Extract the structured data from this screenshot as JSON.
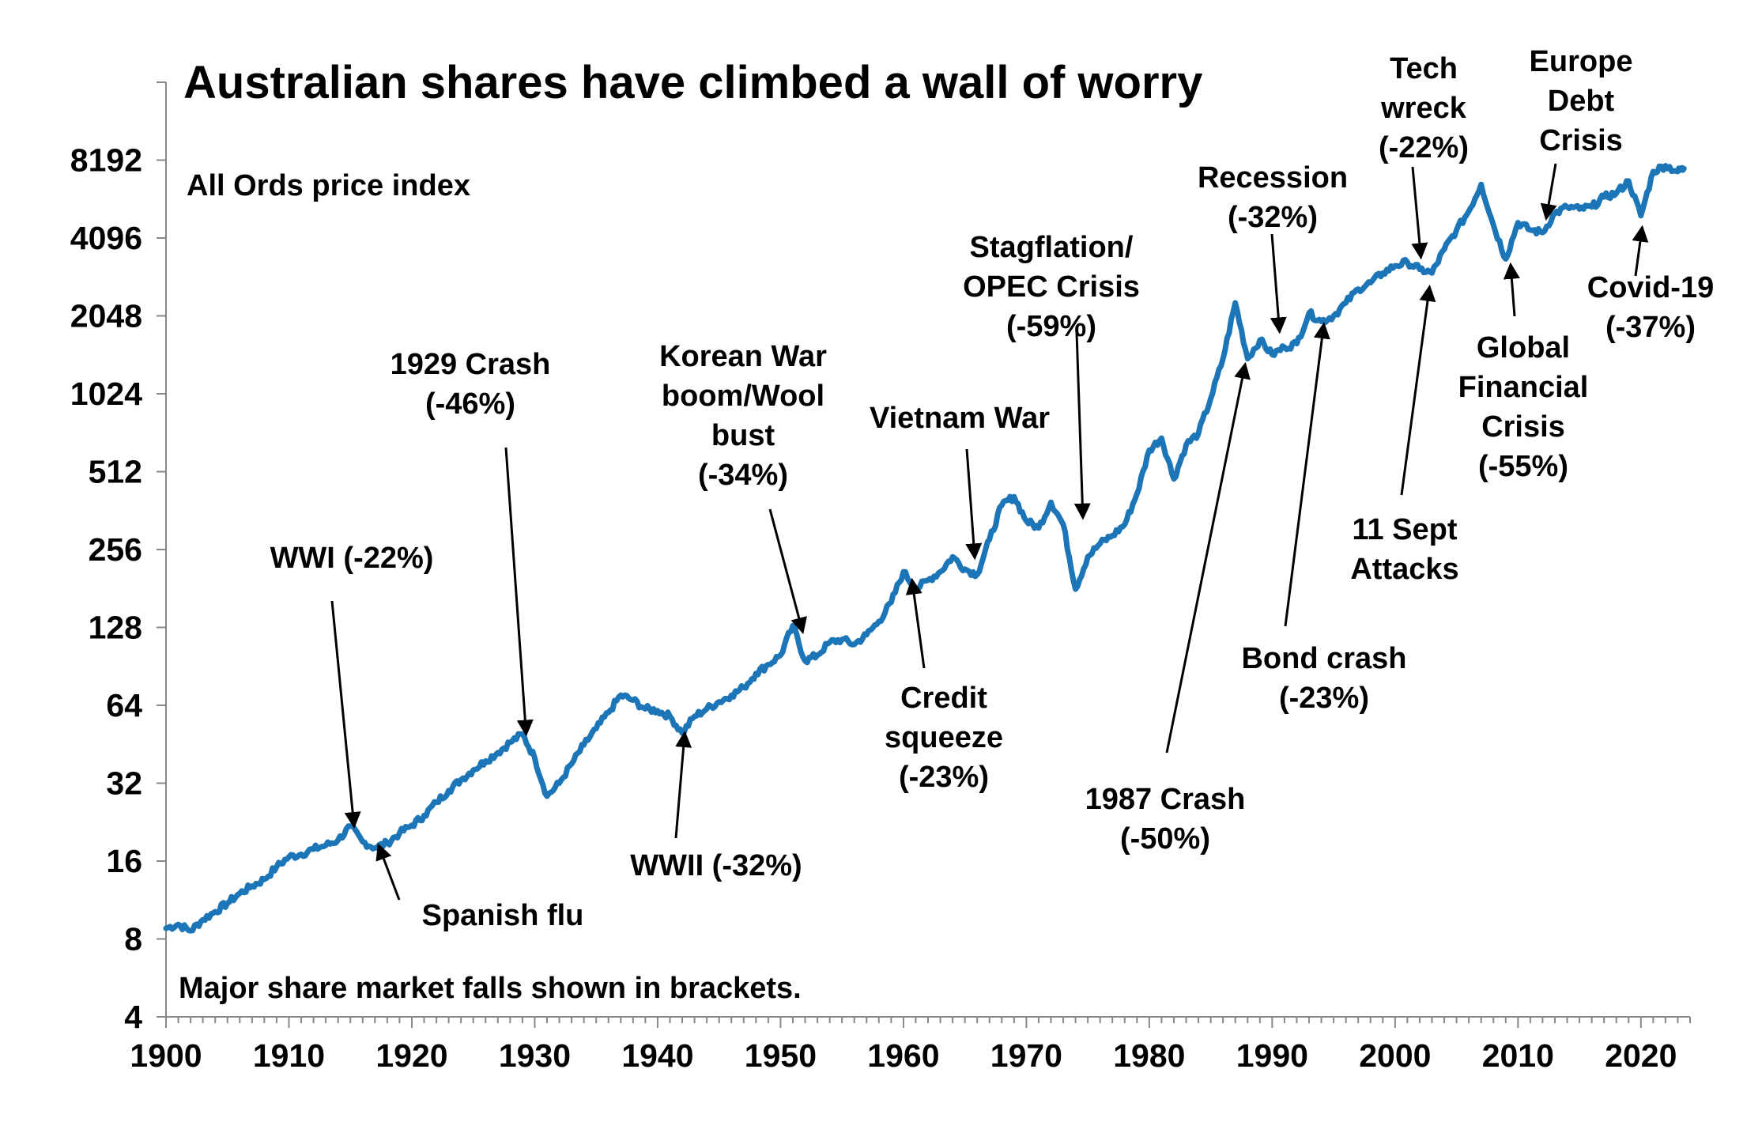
{
  "chart_data": {
    "type": "line",
    "title": "Australian shares have climbed a wall of worry",
    "subtitle": "All Ords price index",
    "footnote": "Major share market falls shown in brackets.",
    "series": [
      {
        "name": "All Ords price index",
        "color": "#1b75b6"
      }
    ],
    "y_scale": "log2",
    "ylim": [
      4,
      16384
    ],
    "xlim": [
      1900,
      2024
    ],
    "x_ticks": [
      "1900",
      "1910",
      "1920",
      "1930",
      "1940",
      "1950",
      "1960",
      "1970",
      "1980",
      "1990",
      "2000",
      "2010",
      "2020"
    ],
    "y_ticks": [
      "4",
      "8",
      "16",
      "32",
      "64",
      "128",
      "256",
      "512",
      "1024",
      "2048",
      "4096",
      "8192"
    ],
    "points": [
      [
        1900,
        8.8
      ],
      [
        1901,
        9.1
      ],
      [
        1902,
        8.6
      ],
      [
        1903,
        9.5
      ],
      [
        1904,
        10.2
      ],
      [
        1905,
        11.0
      ],
      [
        1906,
        12.0
      ],
      [
        1907,
        12.8
      ],
      [
        1908,
        13.6
      ],
      [
        1909,
        15.2
      ],
      [
        1910,
        16.6
      ],
      [
        1911,
        17.0
      ],
      [
        1912,
        17.8
      ],
      [
        1913,
        18.4
      ],
      [
        1914,
        19.3
      ],
      [
        1915,
        21.8
      ],
      [
        1916,
        19.0
      ],
      [
        1917,
        18.0
      ],
      [
        1918,
        18.8
      ],
      [
        1919,
        20.5
      ],
      [
        1920,
        22.0
      ],
      [
        1921,
        24.0
      ],
      [
        1922,
        27.0
      ],
      [
        1923,
        30.0
      ],
      [
        1924,
        33.0
      ],
      [
        1925,
        36.0
      ],
      [
        1926,
        39.0
      ],
      [
        1927,
        42.0
      ],
      [
        1928,
        46.0
      ],
      [
        1929,
        49.5
      ],
      [
        1930,
        40.0
      ],
      [
        1931,
        28.5
      ],
      [
        1932,
        32.0
      ],
      [
        1933,
        38.0
      ],
      [
        1934,
        45.0
      ],
      [
        1935,
        52.0
      ],
      [
        1936,
        60.0
      ],
      [
        1937,
        70.0
      ],
      [
        1938,
        67.0
      ],
      [
        1939,
        62.0
      ],
      [
        1940,
        61.0
      ],
      [
        1941,
        58.0
      ],
      [
        1942,
        50.0
      ],
      [
        1943,
        58.0
      ],
      [
        1944,
        62.0
      ],
      [
        1945,
        66.0
      ],
      [
        1946,
        70.0
      ],
      [
        1947,
        75.0
      ],
      [
        1948,
        85.0
      ],
      [
        1949,
        92.0
      ],
      [
        1950,
        100.0
      ],
      [
        1951,
        130.0
      ],
      [
        1952,
        95.0
      ],
      [
        1953,
        100.0
      ],
      [
        1954,
        112.0
      ],
      [
        1955,
        115.0
      ],
      [
        1956,
        110.0
      ],
      [
        1957,
        120.0
      ],
      [
        1958,
        135.0
      ],
      [
        1959,
        160.0
      ],
      [
        1960,
        210.0
      ],
      [
        1961,
        180.0
      ],
      [
        1962,
        195.0
      ],
      [
        1963,
        210.0
      ],
      [
        1964,
        240.0
      ],
      [
        1965,
        215.0
      ],
      [
        1966,
        205.0
      ],
      [
        1967,
        280.0
      ],
      [
        1968,
        380.0
      ],
      [
        1969,
        410.0
      ],
      [
        1970,
        330.0
      ],
      [
        1971,
        310.0
      ],
      [
        1972,
        390.0
      ],
      [
        1973,
        320.0
      ],
      [
        1974,
        180.0
      ],
      [
        1975,
        240.0
      ],
      [
        1976,
        270.0
      ],
      [
        1977,
        290.0
      ],
      [
        1978,
        320.0
      ],
      [
        1979,
        420.0
      ],
      [
        1980,
        620.0
      ],
      [
        1981,
        690.0
      ],
      [
        1982,
        480.0
      ],
      [
        1983,
        650.0
      ],
      [
        1984,
        720.0
      ],
      [
        1985,
        980.0
      ],
      [
        1986,
        1400.0
      ],
      [
        1987,
        2300.0
      ],
      [
        1988,
        1400.0
      ],
      [
        1989,
        1650.0
      ],
      [
        1990,
        1450.0
      ],
      [
        1991,
        1550.0
      ],
      [
        1992,
        1600.0
      ],
      [
        1993,
        2100.0
      ],
      [
        1994,
        1950.0
      ],
      [
        1995,
        2050.0
      ],
      [
        1996,
        2300.0
      ],
      [
        1997,
        2600.0
      ],
      [
        1998,
        2750.0
      ],
      [
        1999,
        3000.0
      ],
      [
        2000,
        3200.0
      ],
      [
        2001,
        3300.0
      ],
      [
        2002,
        3100.0
      ],
      [
        2003,
        3000.0
      ],
      [
        2004,
        3700.0
      ],
      [
        2005,
        4400.0
      ],
      [
        2006,
        5200.0
      ],
      [
        2007,
        6600.0
      ],
      [
        2008,
        4600.0
      ],
      [
        2009,
        3400.0
      ],
      [
        2010,
        4700.0
      ],
      [
        2011,
        4400.0
      ],
      [
        2012,
        4300.0
      ],
      [
        2013,
        5100.0
      ],
      [
        2014,
        5400.0
      ],
      [
        2015,
        5300.0
      ],
      [
        2016,
        5400.0
      ],
      [
        2017,
        5900.0
      ],
      [
        2018,
        6100.0
      ],
      [
        2019,
        6800.0
      ],
      [
        2020,
        5000.0
      ],
      [
        2021,
        7400.0
      ],
      [
        2022,
        7800.0
      ],
      [
        2023,
        7400.0
      ],
      [
        2023.5,
        7600.0
      ]
    ],
    "annotations": [
      {
        "lines": [
          "WWI (-22%)"
        ],
        "target": [
          1915.3,
          21.8
        ]
      },
      {
        "lines": [
          "Spanish flu"
        ],
        "target": [
          1917.3,
          18.4
        ]
      },
      {
        "lines": [
          "1929 Crash",
          "(-46%)"
        ],
        "target": [
          1929.3,
          49.5
        ]
      },
      {
        "lines": [
          "WWII (-32%)"
        ],
        "target": [
          1942.2,
          50.0
        ]
      },
      {
        "lines": [
          "Korean War",
          "boom/Wool",
          "bust",
          "(-34%)"
        ],
        "target": [
          1951.8,
          123.0
        ]
      },
      {
        "lines": [
          "Credit",
          "squeeze",
          "(-23%)"
        ],
        "target": [
          1960.7,
          195.0
        ]
      },
      {
        "lines": [
          "Vietnam War"
        ],
        "target": [
          1965.8,
          238.0
        ]
      },
      {
        "lines": [
          "Stagflation/",
          "OPEC Crisis",
          "(-59%)"
        ],
        "target": [
          1974.6,
          340.0
        ]
      },
      {
        "lines": [
          "1987 Crash",
          "(-50%)"
        ],
        "target": [
          1987.8,
          1330.0
        ]
      },
      {
        "lines": [
          "Recession",
          "(-32%)"
        ],
        "target": [
          1990.6,
          1780.0
        ]
      },
      {
        "lines": [
          "Bond crash",
          "(-23%)"
        ],
        "target": [
          1994.2,
          1900.0
        ]
      },
      {
        "lines": [
          "Tech",
          "wreck",
          "(-22%)"
        ],
        "target": [
          2002.1,
          3450.0
        ]
      },
      {
        "lines": [
          "11 Sept",
          "Attacks"
        ],
        "target": [
          2002.8,
          2650.0
        ]
      },
      {
        "lines": [
          "Europe",
          "Debt",
          "Crisis"
        ],
        "target": [
          2012.3,
          4880.0
        ]
      },
      {
        "lines": [
          "Global",
          "Financial",
          "Crisis",
          "(-55%)"
        ],
        "target": [
          2009.4,
          3230.0
        ]
      },
      {
        "lines": [
          "Covid-19",
          "(-37%)"
        ],
        "target": [
          2020.1,
          4500.0
        ]
      }
    ]
  }
}
